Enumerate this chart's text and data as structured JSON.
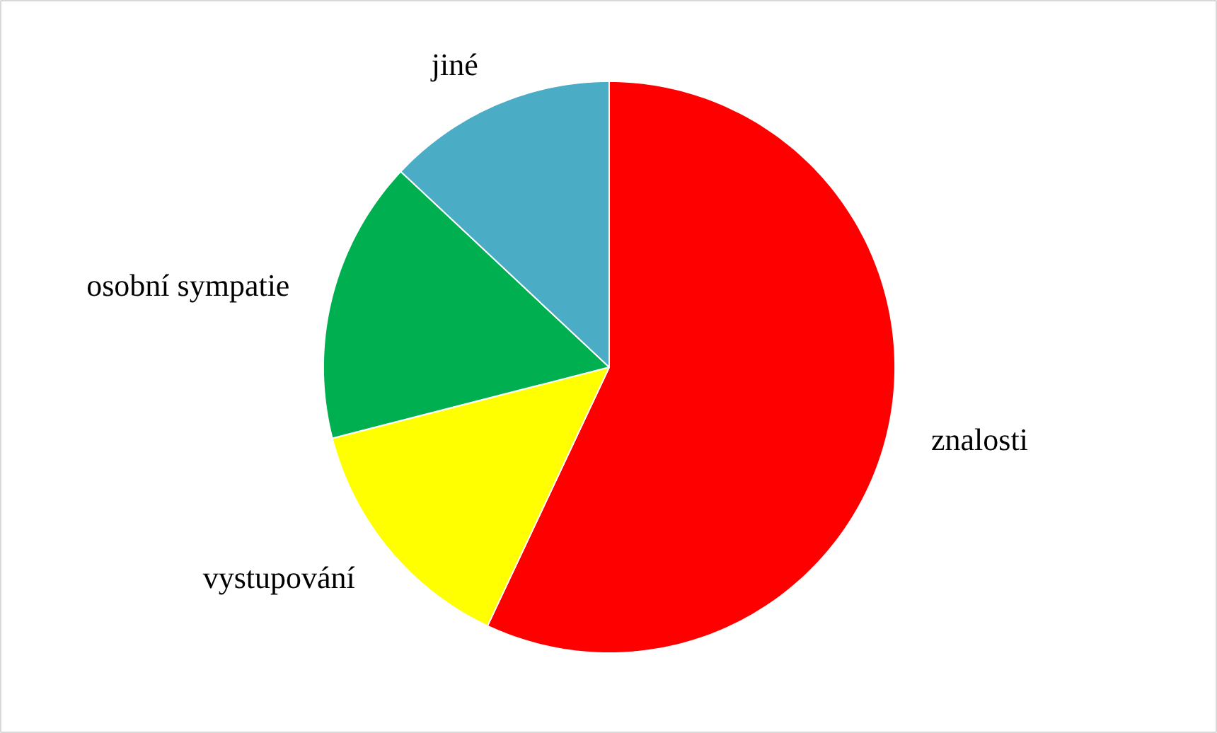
{
  "chart_data": {
    "type": "pie",
    "categories": [
      "znalosti",
      "vystupování",
      "osobní sympatie",
      "jiné"
    ],
    "values": [
      57,
      14,
      16,
      13
    ],
    "colors": [
      "#ff0000",
      "#ffff00",
      "#00b050",
      "#4bacc6"
    ]
  }
}
